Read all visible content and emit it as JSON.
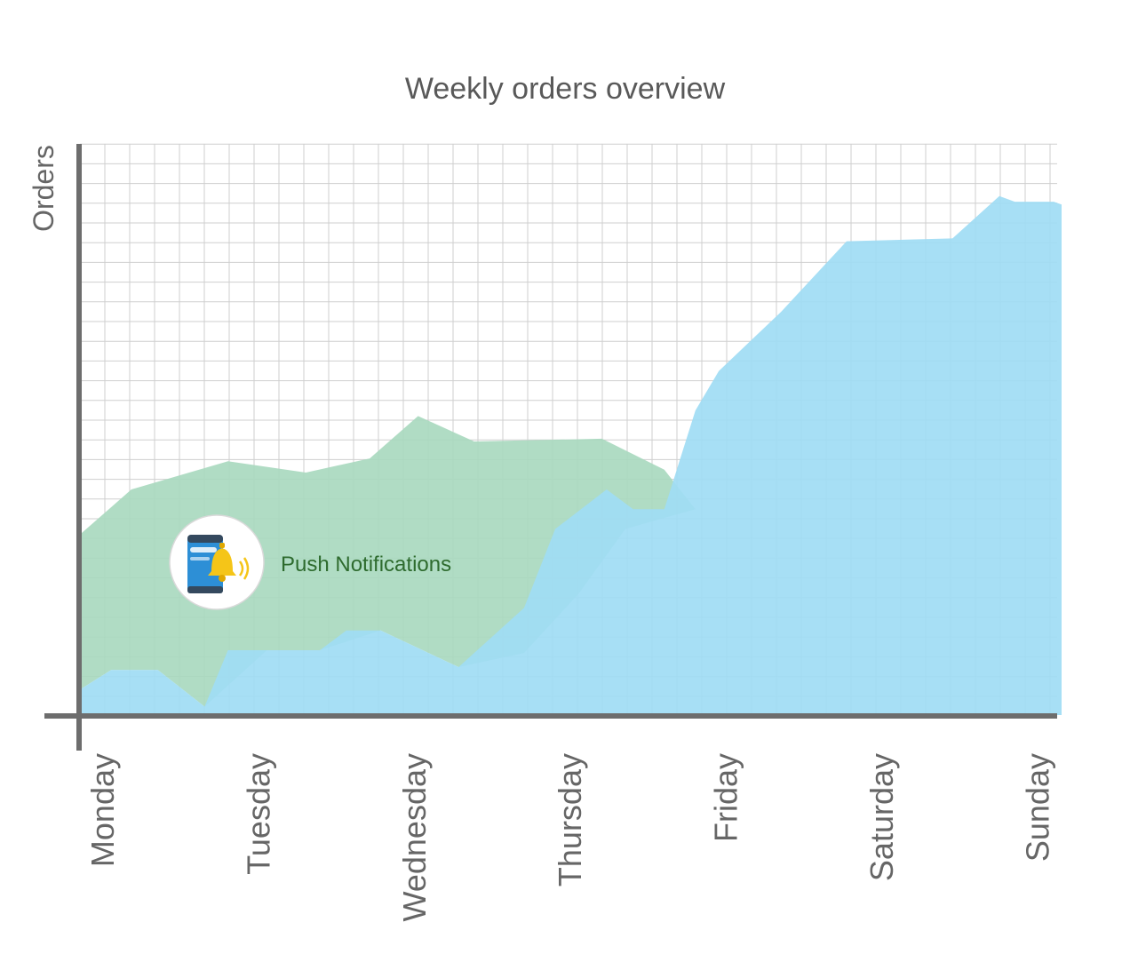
{
  "chart_data": {
    "type": "area",
    "title": "Weekly orders overview",
    "xlabel": "",
    "ylabel": "Orders",
    "categories": [
      "Monday",
      "Tuesday",
      "Wednesday",
      "Thursday",
      "Friday",
      "Saturday",
      "Sunday"
    ],
    "grid": true,
    "legend": "none",
    "xlim": [
      0,
      6.3
    ],
    "ylim": [
      0,
      100
    ],
    "series": [
      {
        "color": "#a9d9bf",
        "points": [
          [
            0.0,
            32.0
          ],
          [
            0.33,
            40.0
          ],
          [
            0.95,
            45.0
          ],
          [
            1.45,
            43.0
          ],
          [
            1.86,
            45.5
          ],
          [
            2.17,
            53.0
          ],
          [
            2.53,
            48.5
          ],
          [
            3.35,
            49.0
          ],
          [
            3.75,
            43.5
          ],
          [
            3.95,
            36.5
          ],
          [
            3.5,
            33.0
          ],
          [
            3.2,
            21.5
          ],
          [
            2.85,
            11.0
          ],
          [
            2.43,
            8.5
          ],
          [
            1.93,
            15.0
          ],
          [
            1.54,
            11.5
          ],
          [
            1.2,
            11.5
          ],
          [
            0.8,
            1.5
          ],
          [
            0.5,
            8.0
          ],
          [
            0.2,
            8.0
          ],
          [
            0.0,
            4.5
          ]
        ]
      },
      {
        "color": "#9fdcf4",
        "points": [
          [
            0.0,
            4.5
          ],
          [
            0.2,
            8.0
          ],
          [
            0.5,
            8.0
          ],
          [
            0.8,
            1.5
          ],
          [
            0.95,
            11.5
          ],
          [
            1.54,
            11.5
          ],
          [
            1.71,
            15.0
          ],
          [
            1.93,
            15.0
          ],
          [
            2.43,
            8.5
          ],
          [
            2.85,
            19.0
          ],
          [
            3.05,
            33.0
          ],
          [
            3.38,
            40.0
          ],
          [
            3.55,
            36.5
          ],
          [
            3.75,
            36.5
          ],
          [
            3.95,
            54.0
          ],
          [
            4.1,
            61.0
          ],
          [
            4.5,
            71.5
          ],
          [
            4.92,
            84.0
          ],
          [
            5.6,
            84.5
          ],
          [
            5.9,
            92.0
          ],
          [
            6.0,
            91.0
          ],
          [
            6.25,
            91.0
          ],
          [
            6.3,
            90.5
          ],
          [
            6.3,
            0.0
          ],
          [
            0.0,
            0.0
          ]
        ]
      }
    ],
    "annotations": [
      {
        "text": "Push Notifications",
        "icon": "phone-bell-icon",
        "color": "#2e6b2e"
      }
    ]
  }
}
